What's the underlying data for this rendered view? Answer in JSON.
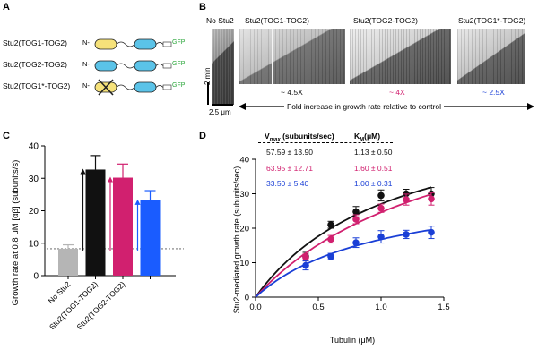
{
  "panels": {
    "a": "A",
    "b": "B",
    "c": "C",
    "d": "D"
  },
  "panelA": {
    "constructs": [
      {
        "label": "Stu2(TOG1-TOG2)",
        "n": "N-",
        "gfp": "GFP",
        "tog1": "wt"
      },
      {
        "label": "Stu2(TOG2-TOG2)",
        "n": "N-",
        "gfp": "GFP",
        "tog1": "tog2"
      },
      {
        "label": "Stu2(TOG1*-TOG2)",
        "n": "N-",
        "gfp": "GFP",
        "tog1": "mutant"
      }
    ],
    "colors": {
      "tog1": "#f6e27a",
      "tog2": "#5bc3e8",
      "gfp": "#2aa63a"
    }
  },
  "panelB": {
    "titles": [
      "No Stu2",
      "Stu2(TOG1-TOG2)",
      "Stu2(TOG2-TOG2)",
      "Stu2(TOG1*-TOG2)"
    ],
    "folds": [
      {
        "text": "~ 4.5X",
        "color": "#111111"
      },
      {
        "text": "~ 4X",
        "color": "#d1206f"
      },
      {
        "text": "~ 2.5X",
        "color": "#1a3fd6"
      }
    ],
    "scale_time": "2 min",
    "scale_space": "2.5 μm",
    "fold_caption": "Fold increase in growth rate relative to control"
  },
  "panelC": {
    "chart_data": {
      "type": "bar",
      "ylabel": "Growth rate at 0.8 μM [αβ] (subunits/s)",
      "ylim": [
        0,
        40
      ],
      "yticks": [
        0,
        10,
        20,
        30,
        40
      ],
      "categories": [
        "No Stu2",
        "Stu2(TOG1-TOG2)",
        "Stu2(TOG2-TOG2)",
        ""
      ],
      "values": [
        8.3,
        32.7,
        30.2,
        23.2
      ],
      "errors": [
        1.2,
        4.3,
        4.2,
        3.0
      ],
      "colors": [
        "#b5b5b5",
        "#111111",
        "#d1206f",
        "#1a5cff"
      ],
      "baseline": 8.3
    }
  },
  "panelD": {
    "table": {
      "header_vmax": "V",
      "header_vmax_sub": "max",
      "header_vmax_units": "(subunits/sec)",
      "header_km": "K",
      "header_km_sub": "M",
      "header_km_units": "(μM)",
      "rows": [
        {
          "vmax": "57.59 ± 13.90",
          "km": "1.13 ± 0.50",
          "color": "#111111"
        },
        {
          "vmax": "63.95 ± 12.71",
          "km": "1.60 ± 0.51",
          "color": "#d1206f"
        },
        {
          "vmax": "33.50 ± 5.40",
          "km": "1.00 ± 0.31",
          "color": "#1a3fd6"
        }
      ]
    },
    "chart_data": {
      "type": "scatter",
      "xlabel": "Tubulin (μM)",
      "ylabel": "Stu2-mediated growth rate (subunits/sec)",
      "xlim": [
        0,
        1.5
      ],
      "ylim": [
        0,
        40
      ],
      "xticks": [
        0.0,
        0.5,
        1.0,
        1.5
      ],
      "xtick_labels": [
        "0.0",
        "0.5",
        "1.0",
        "1.5"
      ],
      "yticks": [
        0,
        10,
        20,
        30,
        40
      ],
      "series": [
        {
          "name": "Stu2(TOG1-TOG2)",
          "color": "#111111",
          "vmax": 57.59,
          "km": 1.13,
          "x": [
            0.4,
            0.6,
            0.8,
            1.0,
            1.2,
            1.4
          ],
          "y": [
            11.8,
            21.0,
            24.8,
            29.5,
            30.0,
            30.0
          ],
          "err": [
            1.2,
            1.0,
            1.5,
            1.6,
            1.3,
            1.8
          ]
        },
        {
          "name": "Stu2(TOG2-TOG2)",
          "color": "#d1206f",
          "vmax": 63.95,
          "km": 1.6,
          "x": [
            0.4,
            0.6,
            0.8,
            1.0,
            1.2,
            1.4
          ],
          "y": [
            11.5,
            16.8,
            22.6,
            25.8,
            28.3,
            28.5
          ],
          "err": [
            1.0,
            1.1,
            1.3,
            1.2,
            1.6,
            1.8
          ]
        },
        {
          "name": "Stu2(TOG1*-TOG2)",
          "color": "#1a3fd6",
          "vmax": 33.5,
          "km": 1.0,
          "x": [
            0.4,
            0.6,
            0.8,
            1.0,
            1.2,
            1.4
          ],
          "y": [
            9.2,
            11.8,
            15.8,
            17.5,
            18.2,
            18.8
          ],
          "err": [
            1.3,
            0.9,
            1.4,
            1.8,
            1.2,
            1.8
          ]
        }
      ]
    }
  }
}
